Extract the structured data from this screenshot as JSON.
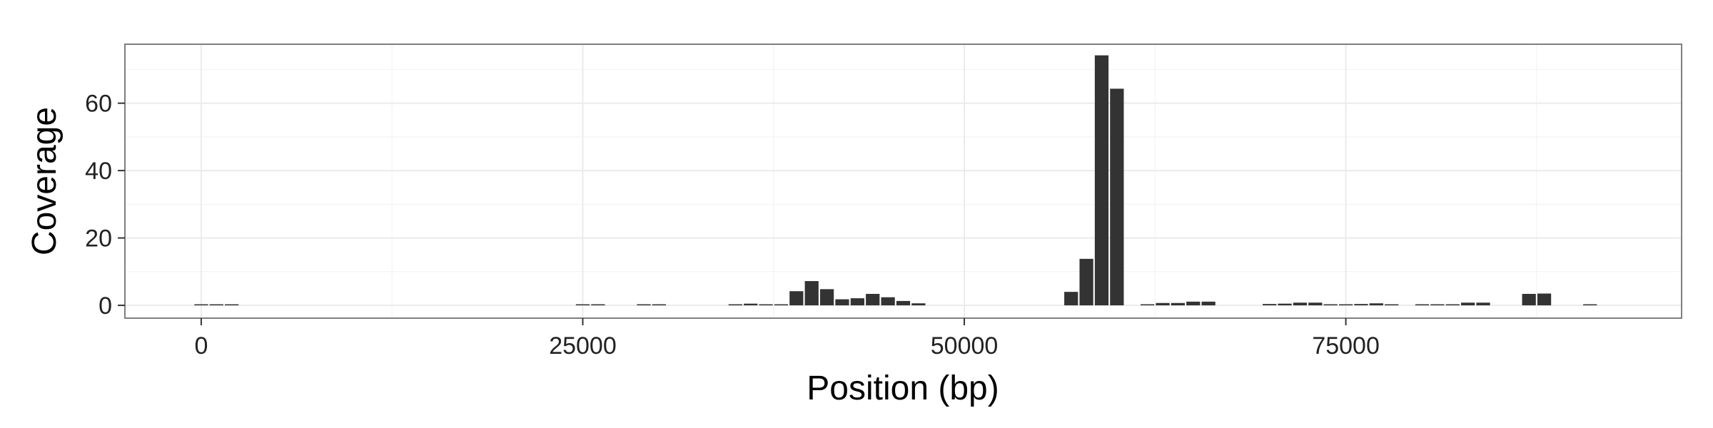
{
  "chart_data": {
    "type": "bar",
    "title": "",
    "xlabel": "Position (bp)",
    "ylabel": "Coverage",
    "xlim": [
      -5000,
      97000
    ],
    "ylim": [
      -3.8,
      77.5
    ],
    "xticks": [
      0,
      25000,
      50000,
      75000
    ],
    "xtick_labels": [
      "0",
      "25000",
      "50000",
      "75000"
    ],
    "yticks": [
      0,
      20,
      40,
      60
    ],
    "ytick_labels": [
      "0",
      "20",
      "40",
      "60"
    ],
    "grid": true,
    "legend": "none",
    "bin_width": 1000,
    "bar_color": "#333333",
    "panel_border_color": "#7f7f7f",
    "grid_color": "#ebebeb",
    "x": [
      0,
      1000,
      2000,
      25000,
      26000,
      29000,
      30000,
      35000,
      36000,
      37000,
      38000,
      39000,
      40000,
      41000,
      42000,
      43000,
      44000,
      45000,
      46000,
      47000,
      57000,
      58000,
      59000,
      60000,
      62000,
      63000,
      64000,
      65000,
      66000,
      70000,
      71000,
      72000,
      73000,
      74000,
      75000,
      76000,
      77000,
      78000,
      80000,
      81000,
      82000,
      83000,
      84000,
      87000,
      88000,
      91000
    ],
    "values": [
      0.3,
      0.3,
      0.2,
      0.2,
      0.2,
      0.2,
      0.2,
      0.3,
      0.5,
      0.2,
      0.3,
      4.2,
      7.2,
      4.8,
      1.8,
      2.1,
      3.4,
      2.4,
      1.3,
      0.6,
      4.0,
      13.8,
      74.2,
      64.3,
      0.2,
      0.7,
      0.7,
      1.1,
      1.1,
      0.4,
      0.5,
      0.8,
      0.8,
      0.3,
      0.3,
      0.4,
      0.6,
      0.3,
      0.2,
      0.2,
      0.3,
      0.8,
      0.8,
      3.4,
      3.5,
      0.2
    ]
  }
}
